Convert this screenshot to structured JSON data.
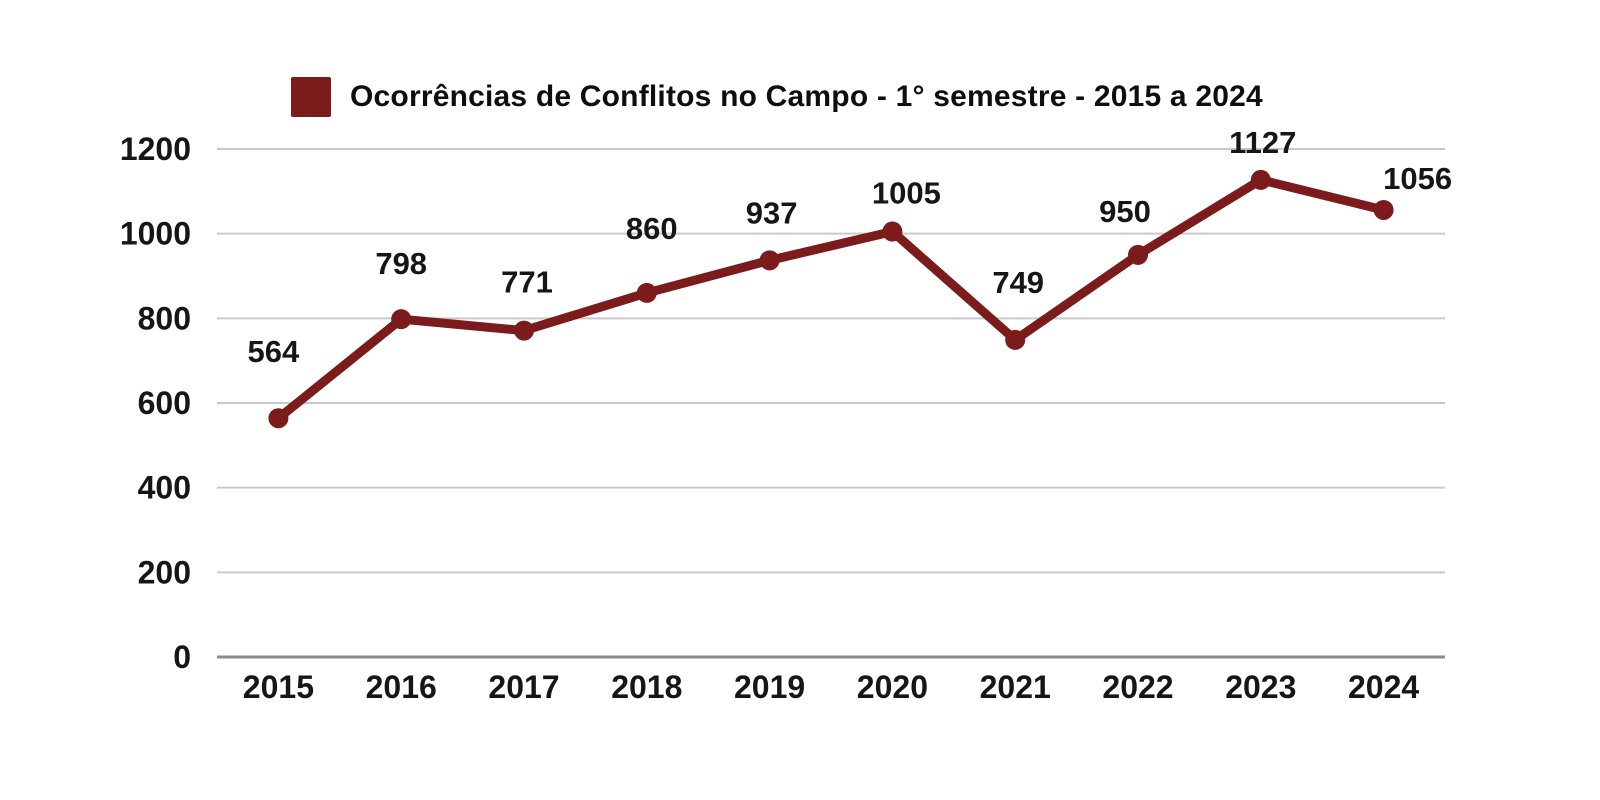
{
  "page": {
    "background": "#FFFFFF"
  },
  "chart_data": {
    "type": "line",
    "title": "Ocorrências de Conflitos no Campo - 1° semestre - 2015 a 2024",
    "categories": [
      "2015",
      "2016",
      "2017",
      "2018",
      "2019",
      "2020",
      "2021",
      "2022",
      "2023",
      "2024"
    ],
    "series": [
      {
        "name": "Ocorrências de Conflitos no Campo - 1° semestre - 2015 a 2024",
        "values": [
          564,
          798,
          771,
          860,
          937,
          1005,
          749,
          950,
          1127,
          1056
        ]
      }
    ],
    "data_labels": [
      564,
      798,
      771,
      860,
      937,
      1005,
      749,
      950,
      1127,
      1056
    ],
    "xlabel": "",
    "ylabel": "",
    "yticks": [
      0,
      200,
      400,
      600,
      800,
      1000,
      1200
    ],
    "ylim": [
      0,
      1200
    ],
    "grid": true,
    "legend_position": "top",
    "colors": {
      "line": "#7B1B1B",
      "marker": "#7B1B1B",
      "legend_swatch": "#7B1B1B",
      "grid": "#C9C9C9",
      "axis_baseline": "#8A8A8A",
      "text": "#161616",
      "background": "#FFFFFF"
    }
  }
}
